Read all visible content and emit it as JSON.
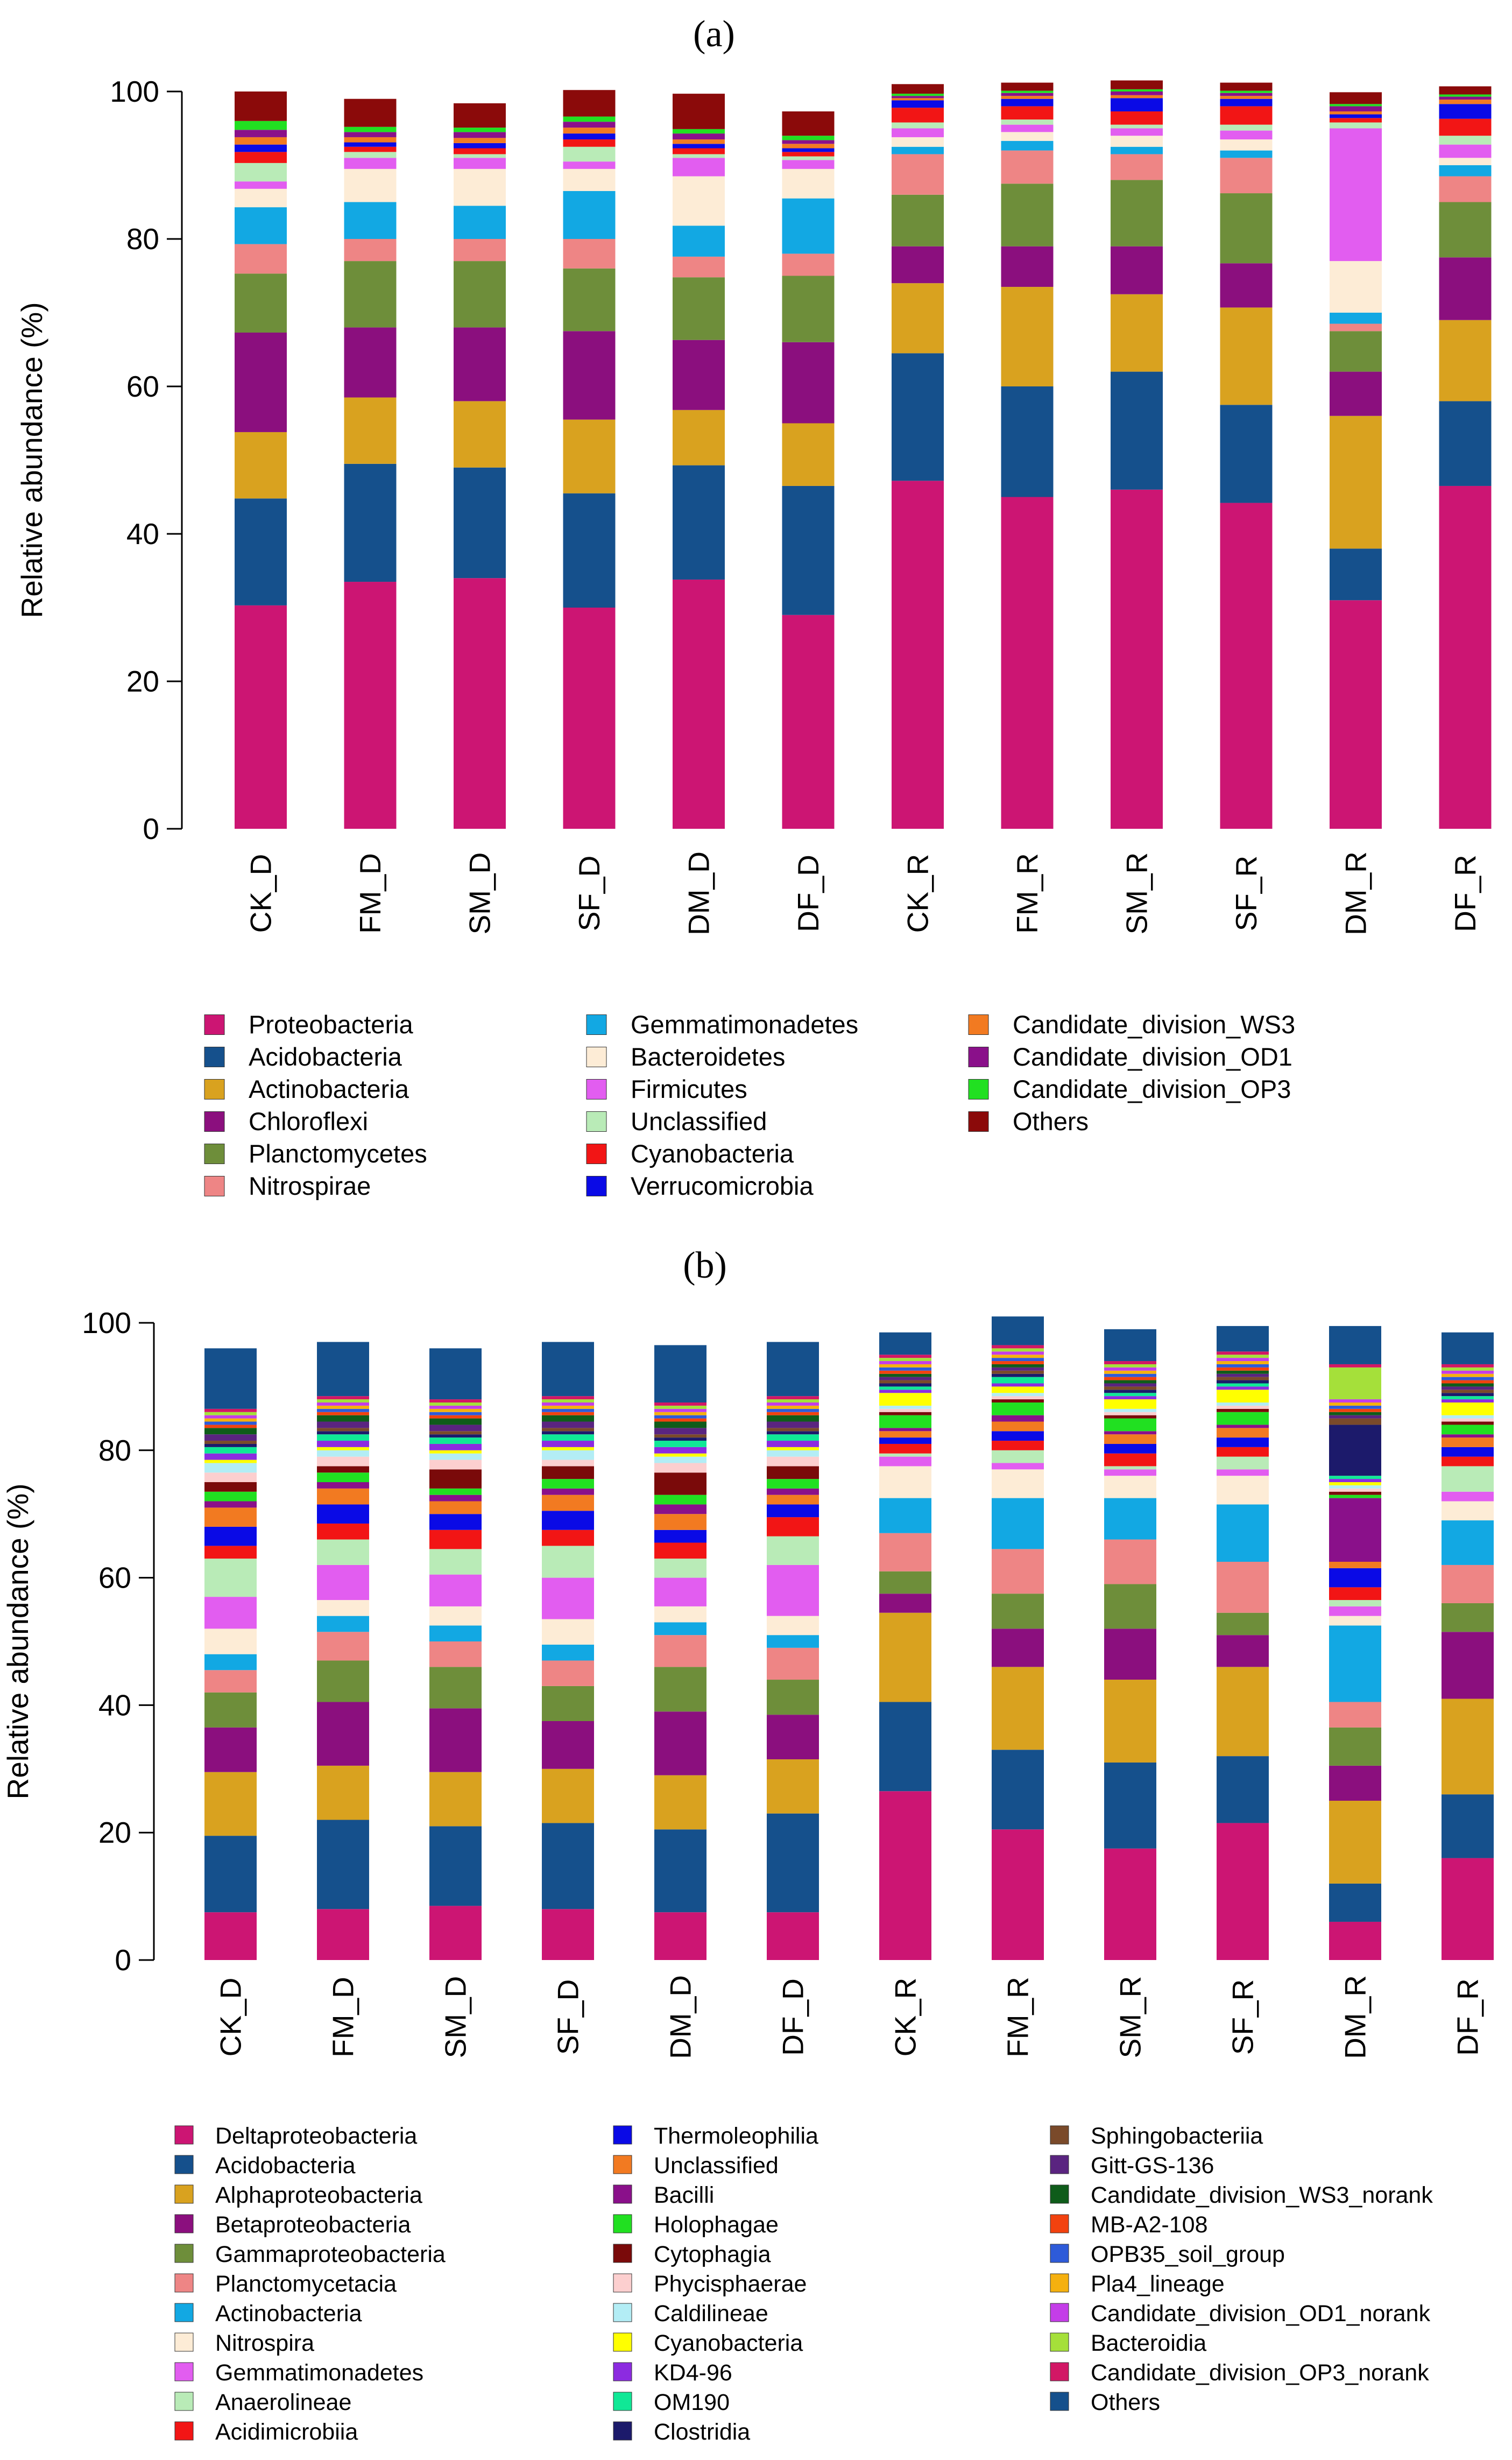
{
  "chart_data": [
    {
      "type": "bar",
      "stacked": true,
      "panel": "(a)",
      "ylabel": "Relative abundance (%)",
      "ylim": [
        0,
        100
      ],
      "yticks": [
        0,
        20,
        40,
        60,
        80,
        100
      ],
      "categories": [
        "CK_D",
        "FM_D",
        "SM_D",
        "SF_D",
        "DM_D",
        "DF_D",
        "CK_R",
        "FM_R",
        "SM_R",
        "SF_R",
        "DM_R",
        "DF_R"
      ],
      "series": [
        {
          "name": "Proteobacteria",
          "color": "#CC1573",
          "values": [
            30.3,
            33.5,
            34.0,
            30.0,
            33.8,
            29.0,
            47.2,
            45.0,
            46.0,
            44.2,
            31.0,
            46.5
          ]
        },
        {
          "name": "Acidobacteria",
          "color": "#15508C",
          "values": [
            14.5,
            16.0,
            15.0,
            15.5,
            15.5,
            17.5,
            17.3,
            15.0,
            16.0,
            13.3,
            7.0,
            11.5
          ]
        },
        {
          "name": "Actinobacteria",
          "color": "#D9A21F",
          "values": [
            9.0,
            9.0,
            9.0,
            10.0,
            7.5,
            8.5,
            9.5,
            13.5,
            10.5,
            13.2,
            18.0,
            11.0
          ]
        },
        {
          "name": "Chloroflexi",
          "color": "#8B0F7E",
          "values": [
            13.5,
            9.5,
            10.0,
            12.0,
            9.5,
            11.0,
            5.0,
            5.5,
            6.5,
            6.0,
            6.0,
            8.5
          ]
        },
        {
          "name": "Planctomycetes",
          "color": "#6E8E3A",
          "values": [
            8.0,
            9.0,
            9.0,
            8.5,
            8.5,
            9.0,
            7.0,
            8.5,
            9.0,
            9.5,
            5.5,
            7.5
          ]
        },
        {
          "name": "Nitrospirae",
          "color": "#EE8585",
          "values": [
            4.0,
            3.0,
            3.0,
            4.0,
            2.8,
            3.0,
            5.5,
            4.5,
            3.5,
            4.8,
            1.0,
            3.5
          ]
        },
        {
          "name": "Gemmatimonadetes",
          "color": "#12A8E3",
          "values": [
            5.0,
            5.0,
            4.5,
            6.5,
            4.2,
            7.5,
            1.0,
            1.3,
            1.0,
            1.0,
            1.5,
            1.5
          ]
        },
        {
          "name": "Bacteroidetes",
          "color": "#FDECD6",
          "values": [
            2.5,
            4.5,
            5.0,
            3.0,
            6.7,
            4.0,
            1.3,
            1.2,
            1.5,
            1.5,
            7.0,
            1.0
          ]
        },
        {
          "name": "Firmicutes",
          "color": "#E25DF0",
          "values": [
            1.0,
            1.5,
            1.5,
            1.0,
            2.5,
            1.2,
            1.2,
            1.0,
            1.0,
            1.2,
            18.0,
            1.8
          ]
        },
        {
          "name": "Unclassified",
          "color": "#B9EBB7",
          "values": [
            2.5,
            0.8,
            0.5,
            2.0,
            0.5,
            0.5,
            0.8,
            0.7,
            0.5,
            0.8,
            0.8,
            1.2
          ]
        },
        {
          "name": "Cyanobacteria",
          "color": "#F21515",
          "values": [
            1.5,
            0.7,
            0.8,
            1.0,
            0.8,
            0.6,
            2.0,
            1.8,
            1.8,
            2.5,
            0.6,
            2.3
          ]
        },
        {
          "name": "Verrucomicrobia",
          "color": "#0A0AE6",
          "values": [
            1.0,
            0.6,
            0.7,
            0.8,
            0.6,
            0.5,
            1.0,
            1.0,
            1.8,
            1.0,
            0.5,
            2.0
          ]
        },
        {
          "name": "Candidate_division_WS3",
          "color": "#F27A21",
          "values": [
            1.0,
            0.7,
            0.7,
            0.8,
            0.6,
            0.6,
            0.3,
            0.4,
            0.4,
            0.4,
            0.4,
            0.6
          ]
        },
        {
          "name": "Candidate_division_OD1",
          "color": "#8A108A",
          "values": [
            1.0,
            0.7,
            0.8,
            0.8,
            0.8,
            0.5,
            0.3,
            0.4,
            0.5,
            0.4,
            0.7,
            0.4
          ]
        },
        {
          "name": "Candidate_division_OP3",
          "color": "#21E021",
          "values": [
            1.2,
            0.7,
            0.6,
            0.7,
            0.6,
            0.6,
            0.3,
            0.3,
            0.3,
            0.3,
            0.3,
            0.3
          ]
        },
        {
          "name": "Others",
          "color": "#8B0A0A",
          "values": [
            4.0,
            3.8,
            3.3,
            3.6,
            4.8,
            3.3,
            1.3,
            1.1,
            1.2,
            1.1,
            1.6,
            1.1
          ]
        }
      ]
    },
    {
      "type": "bar",
      "stacked": true,
      "panel": "(b)",
      "ylabel": "Relative abundance (%)",
      "ylim": [
        0,
        100
      ],
      "yticks": [
        0,
        20,
        40,
        60,
        80,
        100
      ],
      "categories": [
        "CK_D",
        "FM_D",
        "SM_D",
        "SF_D",
        "DM_D",
        "DF_D",
        "CK_R",
        "FM_R",
        "SM_R",
        "SF_R",
        "DM_R",
        "DF_R"
      ],
      "series": [
        {
          "name": "Deltaproteobacteria",
          "color": "#CC1573",
          "values": [
            7.5,
            8.0,
            8.5,
            8.0,
            7.5,
            7.5,
            26.5,
            20.5,
            17.5,
            21.5,
            6.0,
            16.0
          ]
        },
        {
          "name": "Acidobacteria",
          "color": "#15508C",
          "values": [
            12.0,
            14.0,
            12.5,
            13.5,
            13.0,
            15.5,
            14.0,
            12.5,
            13.5,
            10.5,
            6.0,
            10.0
          ]
        },
        {
          "name": "Alphaproteobacteria",
          "color": "#D9A21F",
          "values": [
            10.0,
            8.5,
            8.5,
            8.5,
            8.5,
            8.5,
            14.0,
            13.0,
            13.0,
            14.0,
            13.0,
            15.0
          ]
        },
        {
          "name": "Betaproteobacteria",
          "color": "#8B0F7E",
          "values": [
            7.0,
            10.0,
            10.0,
            7.5,
            10.0,
            7.0,
            3.0,
            6.0,
            8.0,
            5.0,
            5.5,
            10.5
          ]
        },
        {
          "name": "Gammaproteobacteria",
          "color": "#6E8E3A",
          "values": [
            5.5,
            6.5,
            6.5,
            5.5,
            7.0,
            5.5,
            3.5,
            5.5,
            7.0,
            3.5,
            6.0,
            4.5
          ]
        },
        {
          "name": "Planctomycetacia",
          "color": "#EE8585",
          "values": [
            3.5,
            4.5,
            4.0,
            4.0,
            5.0,
            5.0,
            6.0,
            7.0,
            7.0,
            8.0,
            4.0,
            6.0
          ]
        },
        {
          "name": "Actinobacteria",
          "color": "#12A8E3",
          "values": [
            2.5,
            2.5,
            2.5,
            2.5,
            2.0,
            2.0,
            5.5,
            8.0,
            6.5,
            9.0,
            12.0,
            7.0
          ]
        },
        {
          "name": "Nitrospira",
          "color": "#FDECD6",
          "values": [
            4.0,
            2.5,
            3.0,
            4.0,
            2.5,
            3.0,
            5.0,
            4.5,
            3.5,
            4.5,
            1.5,
            3.0
          ]
        },
        {
          "name": "Gemmatimonadetes",
          "color": "#E25DF0",
          "values": [
            5.0,
            5.5,
            5.0,
            6.5,
            4.5,
            8.0,
            1.5,
            1.0,
            1.0,
            1.0,
            1.5,
            1.5
          ]
        },
        {
          "name": "Anaerolineae",
          "color": "#B9EBB7",
          "values": [
            6.0,
            4.0,
            4.0,
            5.0,
            3.0,
            4.5,
            0.5,
            2.0,
            0.5,
            2.0,
            1.0,
            4.0
          ]
        },
        {
          "name": "Acidimicrobiia",
          "color": "#F21515",
          "values": [
            2.0,
            2.5,
            3.0,
            2.5,
            2.5,
            3.0,
            1.5,
            1.5,
            2.0,
            1.5,
            2.0,
            1.5
          ]
        },
        {
          "name": "Thermoleophilia",
          "color": "#0A0AE6",
          "values": [
            3.0,
            3.0,
            2.5,
            3.0,
            2.0,
            2.0,
            1.0,
            1.5,
            1.5,
            1.5,
            3.0,
            1.5
          ]
        },
        {
          "name": "Unclassified",
          "color": "#F27A21",
          "values": [
            3.0,
            2.5,
            2.0,
            2.5,
            2.5,
            1.5,
            1.0,
            1.5,
            1.5,
            1.5,
            1.0,
            1.5
          ]
        },
        {
          "name": "Bacilli",
          "color": "#8A108A",
          "values": [
            1.0,
            1.0,
            1.0,
            1.0,
            1.5,
            1.0,
            0.5,
            1.0,
            0.5,
            0.5,
            10.0,
            0.5
          ]
        },
        {
          "name": "Holophagae",
          "color": "#21E021",
          "values": [
            1.5,
            1.5,
            1.0,
            1.5,
            1.5,
            1.5,
            2.0,
            2.0,
            2.0,
            2.0,
            0.5,
            1.5
          ]
        },
        {
          "name": "Cytophagia",
          "color": "#7A0A0A",
          "values": [
            1.5,
            1.0,
            3.0,
            2.0,
            3.5,
            2.0,
            0.5,
            0.5,
            0.5,
            0.5,
            0.5,
            0.5
          ]
        },
        {
          "name": "Phycisphaerae",
          "color": "#FCCFCF",
          "values": [
            1.5,
            1.5,
            1.5,
            1.0,
            1.5,
            1.5,
            0.5,
            0.5,
            0.5,
            0.5,
            0.5,
            0.5
          ]
        },
        {
          "name": "Caldilineae",
          "color": "#B3EDF5",
          "values": [
            1.5,
            1.0,
            1.0,
            1.5,
            1.0,
            1.0,
            0.5,
            0.5,
            0.5,
            0.5,
            0.5,
            0.5
          ]
        },
        {
          "name": "Cyanobacteria",
          "color": "#FFFF00",
          "values": [
            0.5,
            0.5,
            0.5,
            0.5,
            0.5,
            0.5,
            2.0,
            1.0,
            1.5,
            2.0,
            0.5,
            2.0
          ]
        },
        {
          "name": "KD4-96",
          "color": "#8C2BE0",
          "values": [
            1.0,
            1.0,
            1.0,
            1.0,
            1.0,
            1.0,
            0.5,
            0.5,
            0.5,
            0.5,
            0.5,
            0.5
          ]
        },
        {
          "name": "OM190",
          "color": "#10E896",
          "values": [
            1.0,
            1.0,
            1.0,
            1.0,
            1.0,
            1.0,
            0.5,
            1.0,
            0.5,
            0.5,
            0.5,
            0.5
          ]
        },
        {
          "name": "Clostridia",
          "color": "#1C1A6B",
          "values": [
            0.5,
            0.5,
            0.5,
            0.5,
            0.5,
            0.5,
            0.5,
            0.5,
            0.5,
            0.5,
            8.0,
            0.5
          ]
        },
        {
          "name": "Sphingobacteriia",
          "color": "#7A4A2A",
          "values": [
            0.5,
            0.5,
            0.5,
            0.5,
            0.5,
            0.5,
            0.5,
            0.5,
            0.5,
            0.5,
            1.0,
            0.5
          ]
        },
        {
          "name": "Gitt-GS-136",
          "color": "#5A2480",
          "values": [
            1.0,
            1.0,
            1.0,
            1.0,
            1.0,
            1.0,
            0.5,
            0.5,
            0.5,
            0.5,
            0.5,
            0.5
          ]
        },
        {
          "name": "Candidate_division_WS3_norank",
          "color": "#0F5C1A",
          "values": [
            1.0,
            1.0,
            1.0,
            1.0,
            1.0,
            1.0,
            0.5,
            0.5,
            0.5,
            0.5,
            0.5,
            0.5
          ]
        },
        {
          "name": "MB-A2-108",
          "color": "#F2420F",
          "values": [
            0.5,
            0.5,
            0.5,
            0.5,
            0.5,
            0.5,
            0.5,
            0.5,
            0.5,
            0.5,
            0.5,
            0.5
          ]
        },
        {
          "name": "OPB35_soil_group",
          "color": "#2E5BD9",
          "values": [
            0.5,
            0.5,
            0.5,
            0.5,
            0.5,
            0.5,
            0.5,
            0.5,
            0.5,
            0.5,
            0.5,
            0.5
          ]
        },
        {
          "name": "Pla4_lineage",
          "color": "#F5B00F",
          "values": [
            0.5,
            0.5,
            0.5,
            0.5,
            0.5,
            0.5,
            0.5,
            0.5,
            0.5,
            0.5,
            0.5,
            0.5
          ]
        },
        {
          "name": "Candidate_division_OD1_norank",
          "color": "#C43DE8",
          "values": [
            0.5,
            0.5,
            0.5,
            0.5,
            0.5,
            0.5,
            0.5,
            0.5,
            0.5,
            0.5,
            0.5,
            0.5
          ]
        },
        {
          "name": "Bacteroidia",
          "color": "#A5E03A",
          "values": [
            0.5,
            0.5,
            0.5,
            0.5,
            0.5,
            0.5,
            0.5,
            0.5,
            0.5,
            0.5,
            5.0,
            0.5
          ]
        },
        {
          "name": "Candidate_division_OP3_norank",
          "color": "#D21765",
          "values": [
            0.5,
            0.5,
            0.5,
            0.5,
            0.5,
            0.5,
            0.5,
            0.5,
            0.5,
            0.5,
            0.5,
            0.5
          ]
        },
        {
          "name": "Others",
          "color": "#15508C",
          "values": [
            9.5,
            8.5,
            8.0,
            8.5,
            9.0,
            8.5,
            3.5,
            4.5,
            5.0,
            4.0,
            6.0,
            5.0
          ]
        }
      ]
    }
  ]
}
